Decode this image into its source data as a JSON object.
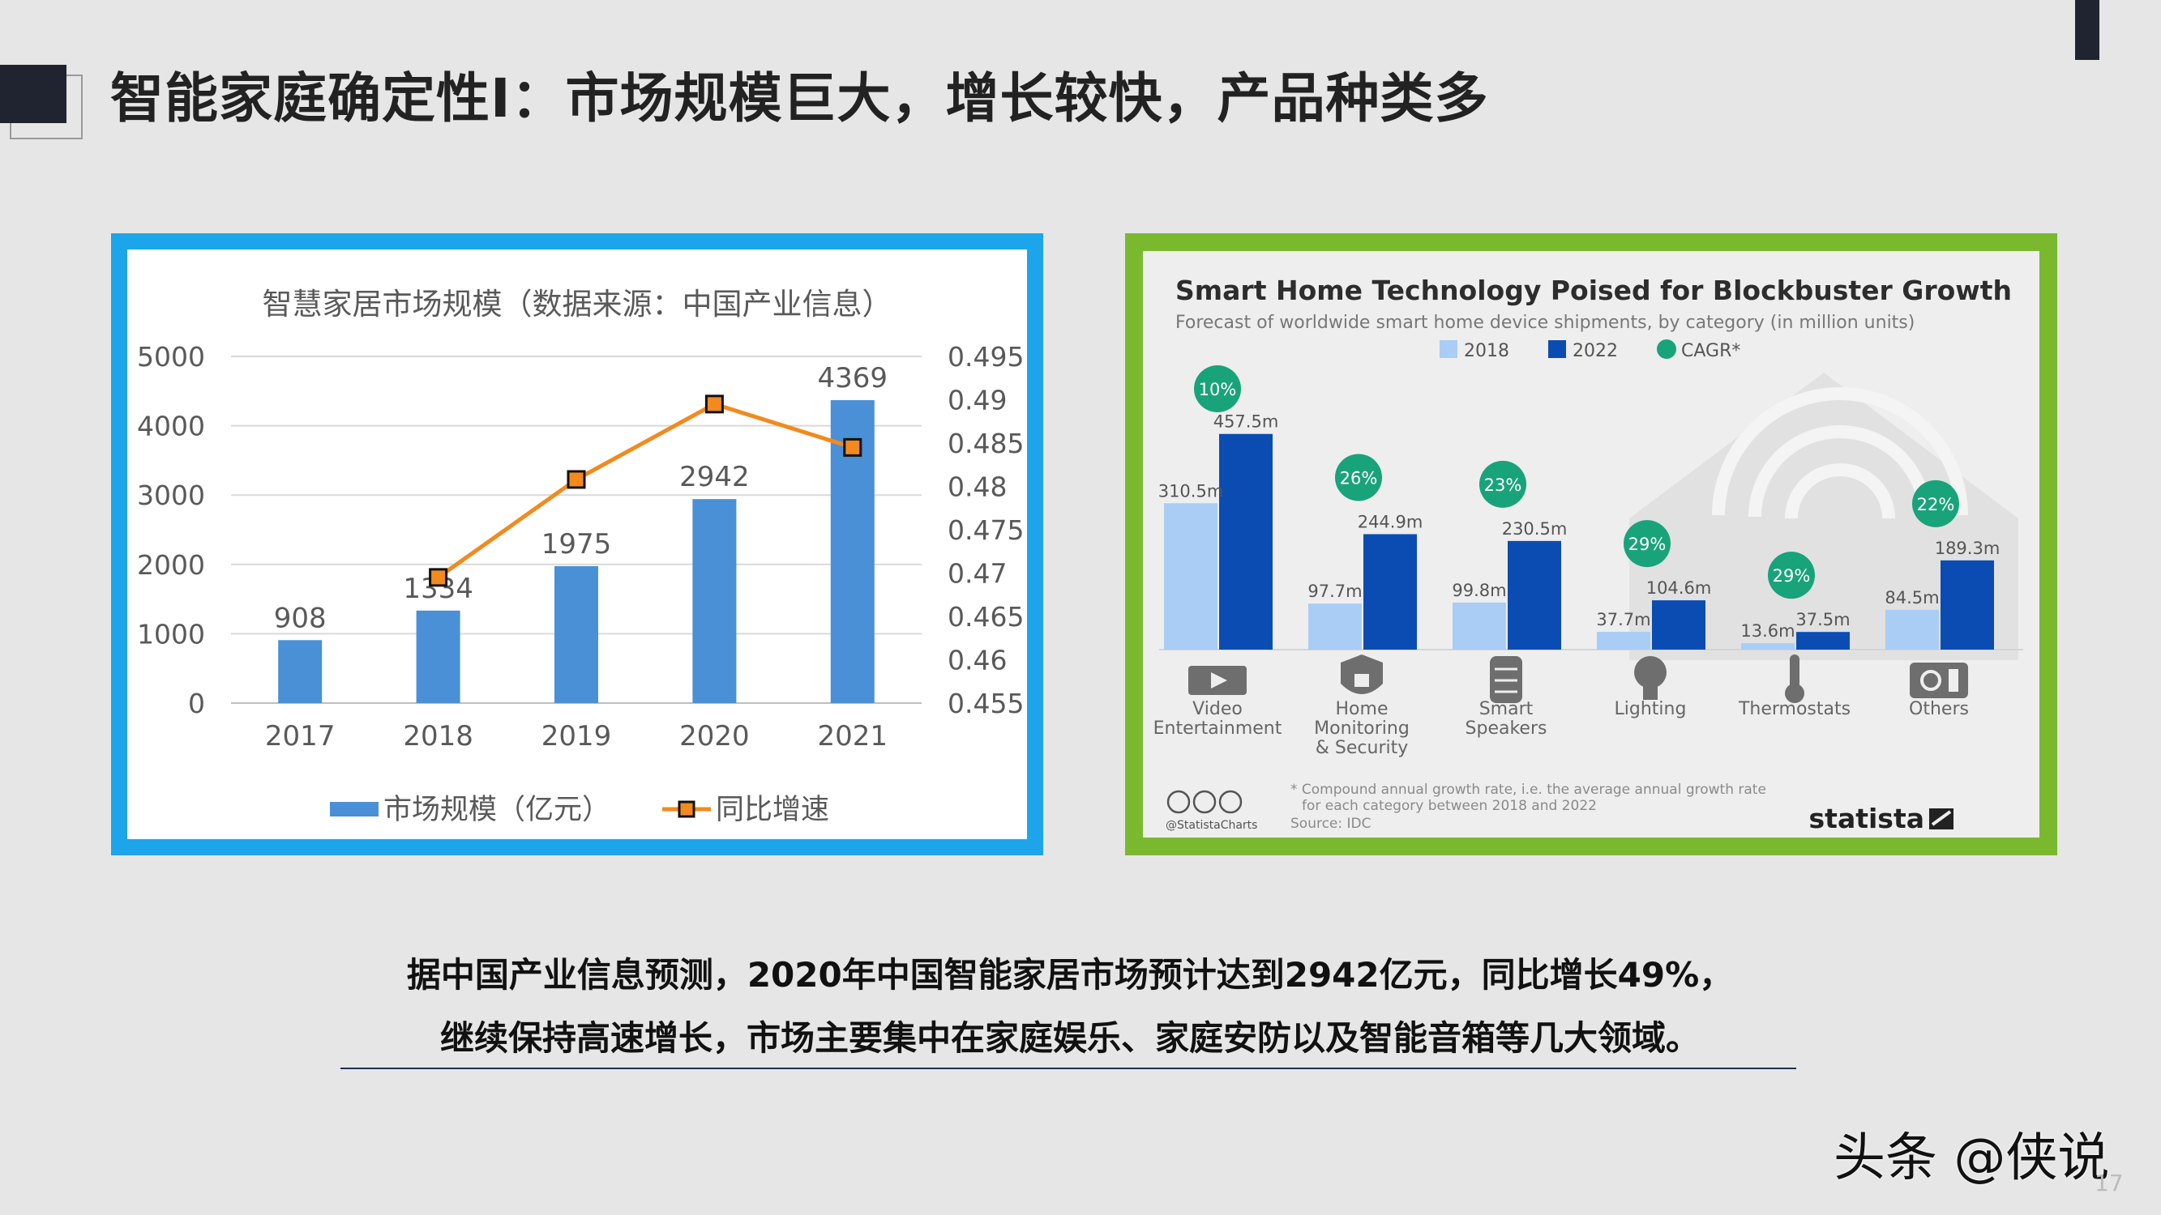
{
  "slide": {
    "title": "智能家庭确定性I：市场规模巨大，增长较快，产品种类多",
    "caption_line1": "据中国产业信息预测，2020年中国智能家居市场预计达到2942亿元，同比增长49%，",
    "caption_line2": "继续保持高速增长，市场主要集中在家庭娱乐、家庭安防以及智能音箱等几大领域。",
    "watermark": "头条 @侠说",
    "page_number": "17",
    "colors": {
      "left_frame": "#1ca5ea",
      "right_frame": "#7ab92e",
      "dark": "#1f2430"
    }
  },
  "chart_data": [
    {
      "type": "bar",
      "title": "智慧家居市场规模（数据来源：中国产业信息）",
      "categories": [
        "2017",
        "2018",
        "2019",
        "2020",
        "2021"
      ],
      "y_ticks": [
        "5000",
        "4000",
        "3000",
        "2000",
        "1000",
        "0"
      ],
      "y2_ticks": [
        "0.495",
        "0.49",
        "0.485",
        "0.48",
        "0.475",
        "0.47",
        "0.465",
        "0.46",
        "0.455"
      ],
      "ylim": [
        0,
        5000
      ],
      "y2lim": [
        0.455,
        0.495
      ],
      "grid": true,
      "legend_position": "bottom",
      "series": [
        {
          "name": "市场规模（亿元）",
          "type": "bar",
          "color": "#4a90d6",
          "values": [
            908,
            1334,
            1975,
            2942,
            4369
          ],
          "labels": [
            "908",
            "1334",
            "1975",
            "2942",
            "4369"
          ]
        },
        {
          "name": "同比增速",
          "type": "line",
          "axis": "right",
          "color": "#f28a1e",
          "x": [
            "2018",
            "2019",
            "2020",
            "2021"
          ],
          "values": [
            0.4695,
            0.4808,
            0.4895,
            0.4845
          ]
        }
      ]
    },
    {
      "type": "bar",
      "title": "Smart Home Technology Poised for Blockbuster Growth",
      "subtitle": "Forecast of worldwide smart home device shipments, by category (in million units)",
      "categories": [
        "Video Entertainment",
        "Home Monitoring & Security",
        "Smart Speakers",
        "Lighting",
        "Thermostats",
        "Others"
      ],
      "category_lines": [
        [
          "Video",
          "Entertainment"
        ],
        [
          "Home",
          "Monitoring",
          "& Security"
        ],
        [
          "Smart",
          "Speakers"
        ],
        [
          "Lighting"
        ],
        [
          "Thermostats"
        ],
        [
          "Others"
        ]
      ],
      "icons": [
        "tv-icon",
        "lock-icon",
        "speaker-icon",
        "bulb-icon",
        "thermometer-icon",
        "settings-icon"
      ],
      "legend": [
        "2018",
        "2022",
        "CAGR*"
      ],
      "legend_position": "top",
      "series": [
        {
          "name": "2018",
          "color": "#a9cdf5",
          "values": [
            310.5,
            97.7,
            99.8,
            37.7,
            13.6,
            84.5
          ],
          "labels": [
            "310.5m",
            "97.7m",
            "99.8m",
            "37.7m",
            "13.6m",
            "84.5m"
          ]
        },
        {
          "name": "2022",
          "color": "#0b4cb2",
          "values": [
            457.5,
            244.9,
            230.5,
            104.6,
            37.5,
            189.3
          ],
          "labels": [
            "457.5m",
            "244.9m",
            "230.5m",
            "104.6m",
            "37.5m",
            "189.3m"
          ]
        },
        {
          "name": "CAGR*",
          "color": "#19a37a",
          "values": [
            10,
            26,
            23,
            29,
            29,
            22
          ],
          "labels": [
            "10%",
            "26%",
            "23%",
            "29%",
            "29%",
            "22%"
          ]
        }
      ],
      "footnote_line1": "* Compound annual growth rate, i.e. the average annual growth rate",
      "footnote_line2": "for each category between 2018 and 2022",
      "credit": "@StatistaCharts",
      "source": "Source: IDC",
      "brand": "statista"
    }
  ]
}
